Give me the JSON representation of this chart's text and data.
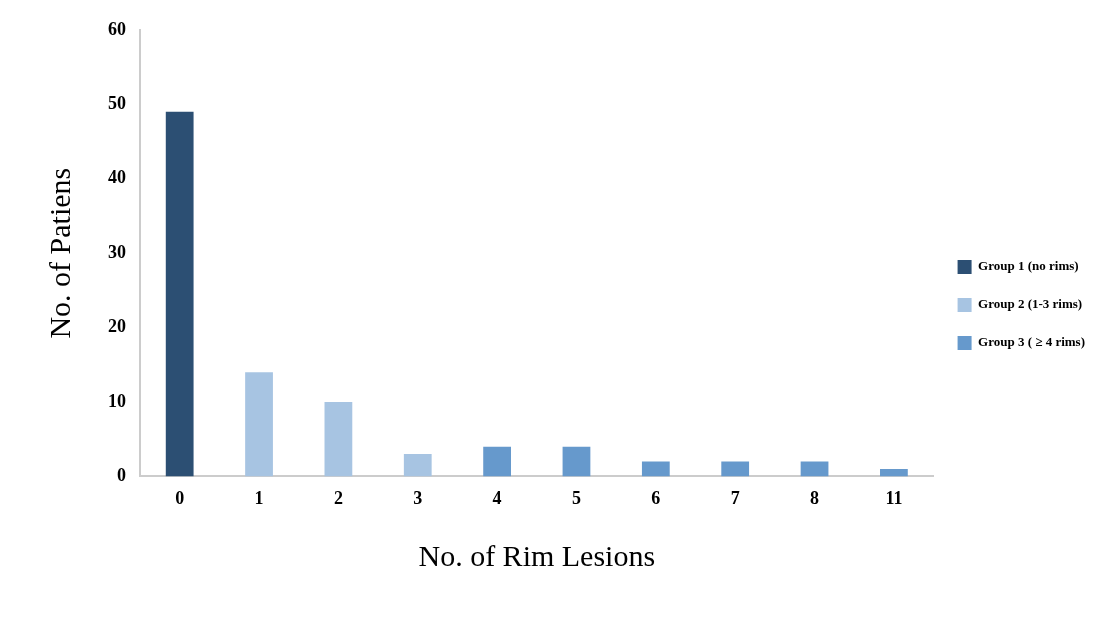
{
  "chart_data": {
    "type": "bar",
    "xlabel": "No. of Rim Lesions",
    "ylabel": "No. of Patiens",
    "categories": [
      "0",
      "1",
      "2",
      "3",
      "4",
      "5",
      "6",
      "7",
      "8",
      "11"
    ],
    "series": [
      {
        "name": "Group 1 (no rims)",
        "color": "#2c4f73",
        "values": [
          49,
          null,
          null,
          null,
          null,
          null,
          null,
          null,
          null,
          null
        ]
      },
      {
        "name": "Group 2 (1-3 rims)",
        "color": "#a7c4e2",
        "values": [
          null,
          14,
          10,
          3,
          null,
          null,
          null,
          null,
          null,
          null
        ]
      },
      {
        "name": "Group 3 ( ≥ 4 rims)",
        "color": "#6699cc",
        "values": [
          null,
          null,
          null,
          null,
          4,
          4,
          2,
          2,
          2,
          1
        ]
      }
    ],
    "ylim": [
      0,
      60
    ],
    "yticks": [
      0,
      10,
      20,
      30,
      40,
      50,
      60
    ],
    "grid": false,
    "legend": "right"
  }
}
